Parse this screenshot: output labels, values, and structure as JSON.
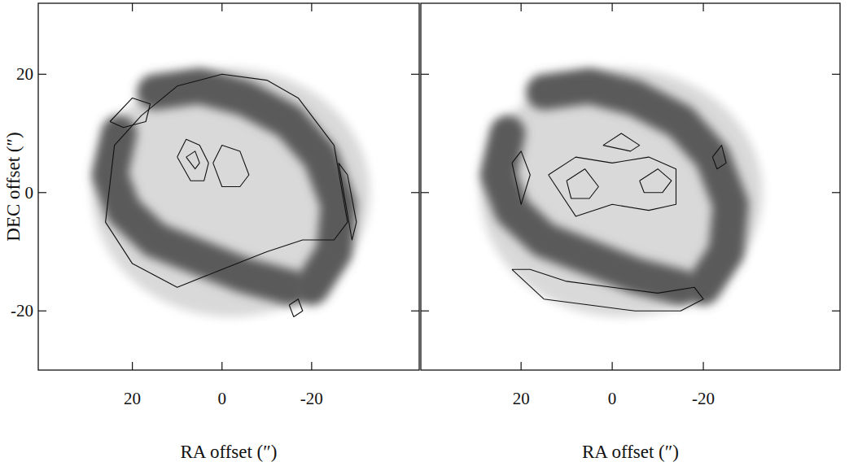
{
  "chart_data": [
    {
      "type": "contour",
      "xlabel": "RA offset (″)",
      "ylabel": "DEC offset (″)",
      "xlim": [
        41,
        -44
      ],
      "ylim": [
        -30,
        32
      ],
      "xticks": [
        20,
        0,
        -20
      ],
      "yticks": [
        -20,
        0,
        20
      ],
      "tick_labels": true,
      "disk": {
        "x": -2,
        "y": 0,
        "rx": 31,
        "ry": 21
      },
      "arms": [
        {
          "x": [
            15,
            5,
            -5,
            -15,
            -22,
            -26,
            -25,
            -20
          ],
          "y": [
            17,
            18,
            16,
            12,
            6,
            -2,
            -10,
            -16
          ]
        },
        {
          "x": [
            -15,
            -5,
            5,
            15,
            22,
            25,
            23
          ],
          "y": [
            -16,
            -14,
            -11,
            -8,
            -3,
            3,
            10
          ]
        }
      ],
      "contours": [
        {
          "x": [
            18,
            10,
            0,
            -10,
            -17,
            -25,
            -28,
            -25,
            -18,
            -10,
            0,
            10,
            20,
            26,
            24,
            18
          ],
          "y": [
            13,
            18,
            20,
            19,
            16,
            8,
            -5,
            -8,
            -8,
            -10,
            -13,
            -16,
            -12,
            -5,
            8,
            13
          ]
        },
        {
          "x": [
            10,
            8,
            5,
            3,
            4,
            7,
            10
          ],
          "y": [
            6,
            9,
            8,
            5,
            2,
            2,
            6
          ]
        },
        {
          "x": [
            8,
            6,
            5,
            6,
            8
          ],
          "y": [
            6,
            7,
            5,
            4,
            6
          ]
        },
        {
          "x": [
            2,
            0,
            -4,
            -6,
            -4,
            0,
            2
          ],
          "y": [
            5,
            8,
            7,
            3,
            1,
            1,
            5
          ]
        },
        {
          "x": [
            25,
            20,
            16,
            17,
            22,
            25
          ],
          "y": [
            12,
            16,
            15,
            12,
            11,
            12
          ]
        },
        {
          "x": [
            -26,
            -28,
            -30,
            -29,
            -26
          ],
          "y": [
            5,
            3,
            -5,
            -8,
            5
          ]
        },
        {
          "x": [
            -15,
            -17,
            -18,
            -16,
            -15
          ],
          "y": [
            -19,
            -18,
            -20,
            -21,
            -19
          ]
        }
      ]
    },
    {
      "type": "contour",
      "xlabel": "RA offset (″)",
      "xlim": [
        42,
        -50
      ],
      "ylim": [
        -30,
        32
      ],
      "xticks": [
        20,
        0,
        -20
      ],
      "yticks": [
        -20,
        0,
        20
      ],
      "tick_labels": "x",
      "disk": {
        "x": -2,
        "y": 0,
        "rx": 31,
        "ry": 21
      },
      "arms": [
        {
          "x": [
            15,
            5,
            -5,
            -15,
            -22,
            -26,
            -25,
            -20
          ],
          "y": [
            17,
            18,
            16,
            12,
            6,
            -2,
            -10,
            -16
          ]
        },
        {
          "x": [
            -15,
            -5,
            5,
            15,
            22,
            25,
            23
          ],
          "y": [
            -16,
            -14,
            -11,
            -8,
            -3,
            3,
            10
          ]
        }
      ],
      "contours": [
        {
          "x": [
            14,
            8,
            0,
            -8,
            -14,
            -14,
            -8,
            0,
            8,
            14
          ],
          "y": [
            3,
            6,
            5,
            6,
            4,
            -2,
            -3,
            -2,
            -4,
            3
          ]
        },
        {
          "x": [
            10,
            6,
            3,
            5,
            9,
            10
          ],
          "y": [
            2,
            4,
            1,
            -1,
            -1,
            2
          ]
        },
        {
          "x": [
            -6,
            -10,
            -13,
            -11,
            -7,
            -6
          ],
          "y": [
            2,
            4,
            2,
            0,
            0,
            2
          ]
        },
        {
          "x": [
            22,
            15,
            5,
            -5,
            -15,
            -20,
            -18,
            -10,
            0,
            10,
            18,
            22
          ],
          "y": [
            -13,
            -18,
            -19,
            -20,
            -20,
            -18,
            -16,
            -17,
            -16,
            -15,
            -13,
            -13
          ]
        },
        {
          "x": [
            22,
            20,
            18,
            20,
            22
          ],
          "y": [
            5,
            7,
            3,
            -2,
            5
          ]
        },
        {
          "x": [
            -22,
            -24,
            -25,
            -23,
            -22
          ],
          "y": [
            6,
            8,
            5,
            4,
            6
          ]
        },
        {
          "x": [
            2,
            -2,
            -6,
            -4,
            2
          ],
          "y": [
            8,
            10,
            8,
            7,
            8
          ]
        }
      ]
    }
  ]
}
